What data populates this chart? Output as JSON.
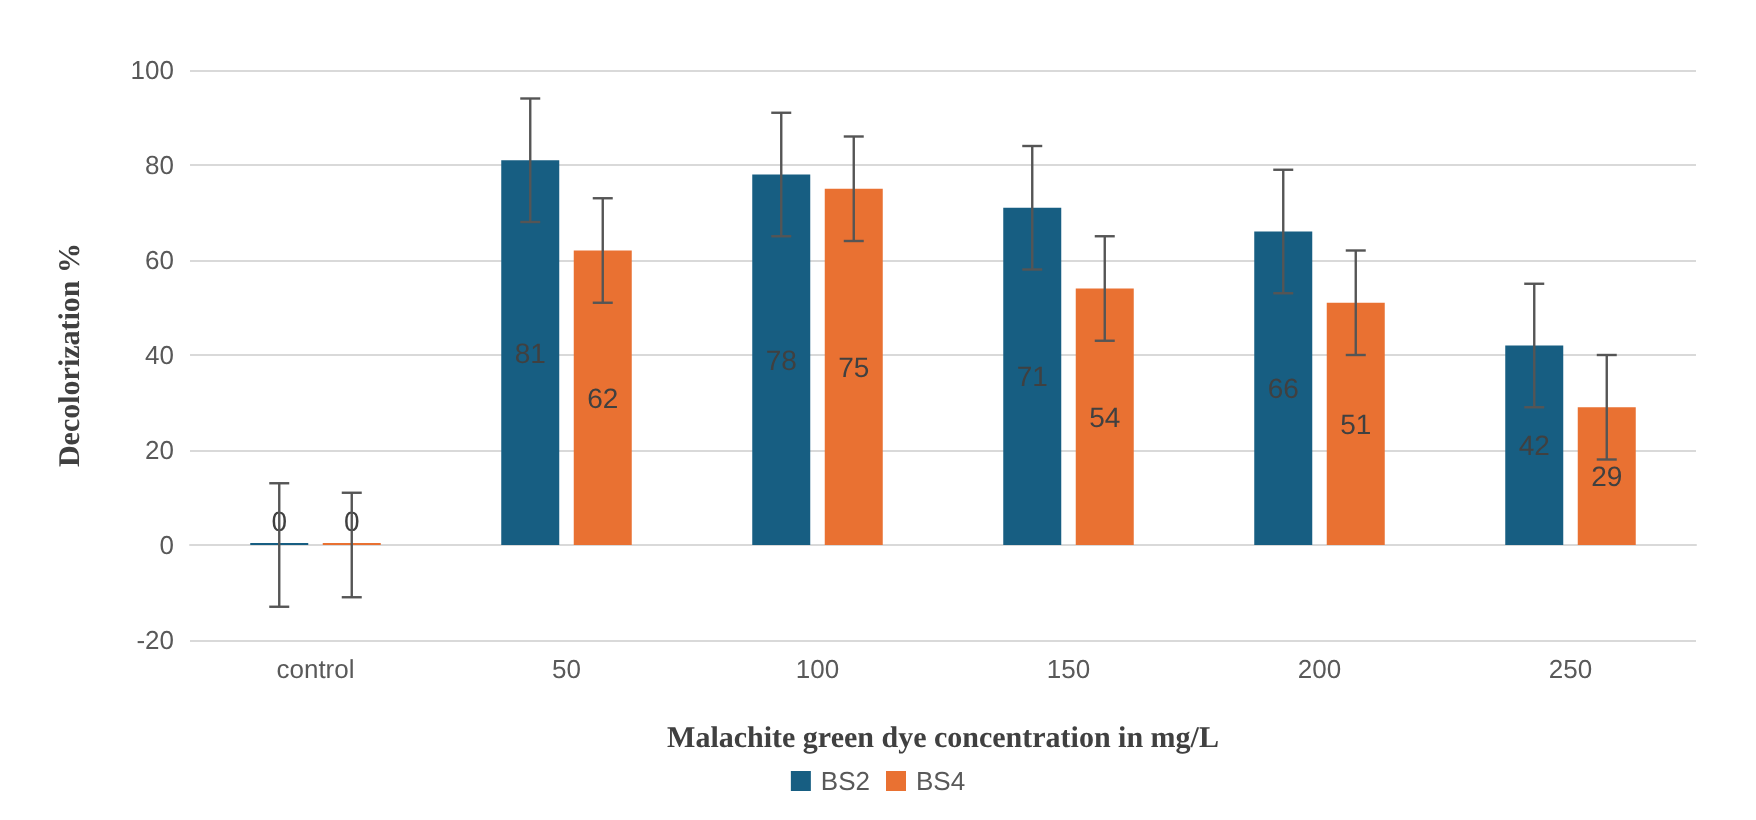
{
  "chart_data": {
    "type": "bar",
    "xlabel": "Malachite green dye concentration in mg/L",
    "ylabel": "Decolorization %",
    "categories": [
      "control",
      "50",
      "100",
      "150",
      "200",
      "250"
    ],
    "series": [
      {
        "name": "BS2",
        "color": "#175e82",
        "values": [
          0,
          81,
          78,
          71,
          66,
          42
        ],
        "errors": [
          13,
          13,
          13,
          13,
          13,
          13
        ]
      },
      {
        "name": "BS4",
        "color": "#e97132",
        "values": [
          0,
          62,
          75,
          54,
          51,
          29
        ],
        "errors": [
          11,
          11,
          11,
          11,
          11,
          11
        ]
      }
    ],
    "ylim": [
      -20,
      100
    ],
    "yticks": [
      -20,
      0,
      20,
      40,
      60,
      80,
      100
    ],
    "grid": "y",
    "legend": "bottom",
    "data_labels": true
  }
}
